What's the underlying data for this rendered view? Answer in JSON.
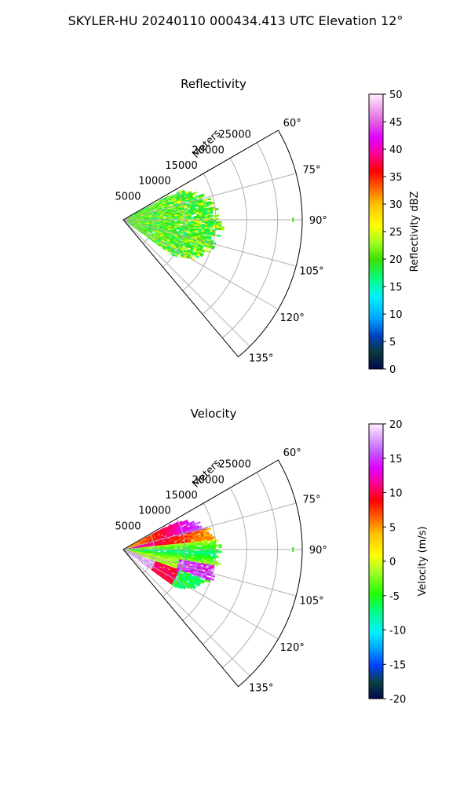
{
  "figure": {
    "suptitle": "SKYLER-HU  20240110  000434.413 UTC Elevation 12°"
  },
  "chart_data": [
    {
      "type": "heatmap",
      "projection": "polar-sector",
      "title": "Reflectivity",
      "radial_label": "Meters",
      "radial_ticks": [
        5000,
        10000,
        15000,
        20000,
        25000
      ],
      "radial_tick_labels": [
        "5000",
        "10000",
        "15000",
        "20000",
        "25000"
      ],
      "rmax": 29000,
      "azimuth_range_deg": [
        60,
        140
      ],
      "azimuth_ticks": [
        60,
        75,
        90,
        105,
        120,
        135
      ],
      "azimuth_tick_labels": [
        "60°",
        "75°",
        "90°",
        "105°",
        "120°",
        "135°"
      ],
      "grid": true,
      "data_extent": {
        "azimuth_deg": [
          62,
          126
        ],
        "range_m": [
          0,
          16000
        ],
        "value_range": [
          15,
          28
        ],
        "dominant_values": "15–25 dBZ (cyan/green/yellow)"
      },
      "colorbar": {
        "label": "Reflectivity dBZ",
        "min": 0,
        "max": 50,
        "ticks": [
          0,
          5,
          10,
          15,
          20,
          25,
          30,
          35,
          40,
          45,
          50
        ],
        "tick_labels": [
          "0",
          "5",
          "10",
          "15",
          "20",
          "25",
          "30",
          "35",
          "40",
          "45",
          "50"
        ]
      }
    },
    {
      "type": "heatmap",
      "projection": "polar-sector",
      "title": "Velocity",
      "radial_label": "Meters",
      "radial_ticks": [
        5000,
        10000,
        15000,
        20000,
        25000
      ],
      "radial_tick_labels": [
        "5000",
        "10000",
        "15000",
        "20000",
        "25000"
      ],
      "rmax": 29000,
      "azimuth_range_deg": [
        60,
        140
      ],
      "azimuth_ticks": [
        60,
        75,
        90,
        105,
        120,
        135
      ],
      "azimuth_tick_labels": [
        "60°",
        "75°",
        "90°",
        "105°",
        "120°",
        "135°"
      ],
      "grid": true,
      "data_extent": {
        "azimuth_deg": [
          62,
          126
        ],
        "range_m": [
          0,
          16000
        ],
        "value_range": [
          -12,
          18
        ],
        "dominant_values": "approaching (-10 m/s, cyan/green) near 90°–105°, receding (+10 to +18 m/s, red/magenta) near 65°–75° and 110°–125°"
      },
      "colorbar": {
        "label": "Velocity (m/s)",
        "min": -20,
        "max": 20,
        "ticks": [
          -20,
          -15,
          -10,
          -5,
          0,
          5,
          10,
          15,
          20
        ],
        "tick_labels": [
          "-20",
          "-15",
          "-10",
          "-5",
          "0",
          "5",
          "10",
          "15",
          "20"
        ]
      }
    }
  ]
}
